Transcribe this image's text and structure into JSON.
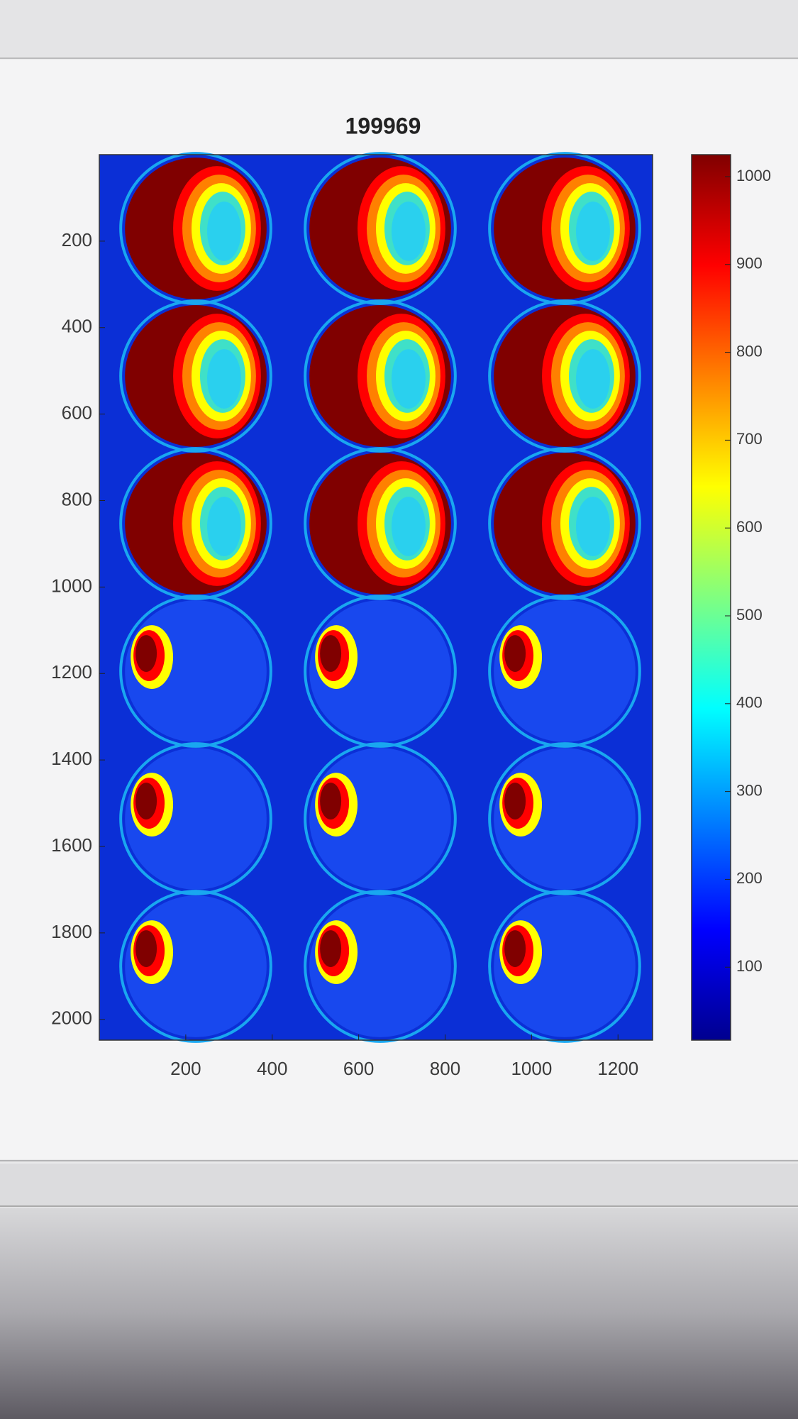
{
  "chart_data": {
    "type": "heatmap",
    "title": "199969",
    "xlim": [
      0,
      1280
    ],
    "ylim": [
      0,
      2048
    ],
    "y_direction": "reverse",
    "xticks": [
      200,
      400,
      600,
      800,
      1000,
      1200
    ],
    "yticks": [
      200,
      400,
      600,
      800,
      1000,
      1200,
      1400,
      1600,
      1800,
      2000
    ],
    "colormap": "jet",
    "colorbar": {
      "clim": [
        17,
        1025
      ],
      "ticks": [
        100,
        200,
        300,
        400,
        500,
        600,
        700,
        800,
        900,
        1000
      ]
    }
  }
}
